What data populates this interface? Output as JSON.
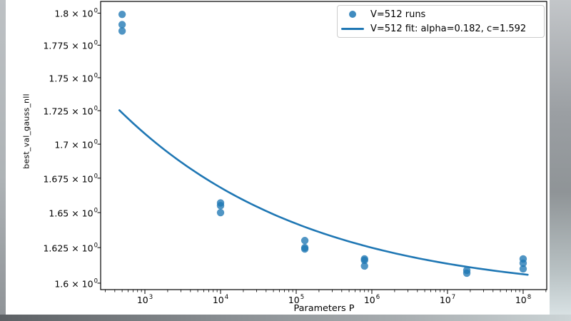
{
  "frame": {
    "edge_color_left": "#b0b4b8",
    "edge_color_right_mid": "#8f9497",
    "edge_color_bottom_left": "#5d6165",
    "figure_bg": "#ffffff"
  },
  "chart_data": {
    "type": "scatter",
    "title": "",
    "xlabel": "Parameters P",
    "ylabel": "best_val_gauss_nll",
    "xscale": "log",
    "yscale": "log",
    "xlim": [
      260,
      205000000
    ],
    "ylim": [
      1.5955,
      1.8092
    ],
    "grid": false,
    "times_symbol": "×",
    "tick_base": "10",
    "x_ticks": [
      {
        "exponent": "3",
        "value": 1000
      },
      {
        "exponent": "4",
        "value": 10000
      },
      {
        "exponent": "5",
        "value": 100000
      },
      {
        "exponent": "6",
        "value": 1000000
      },
      {
        "exponent": "7",
        "value": 10000000
      },
      {
        "exponent": "8",
        "value": 100000000
      }
    ],
    "y_tick_exponent": "0",
    "y_ticks": [
      {
        "mantissa": "1.8",
        "value": 1.8
      },
      {
        "mantissa": "1.775",
        "value": 1.775
      },
      {
        "mantissa": "1.75",
        "value": 1.75
      },
      {
        "mantissa": "1.725",
        "value": 1.725
      },
      {
        "mantissa": "1.7",
        "value": 1.7
      },
      {
        "mantissa": "1.675",
        "value": 1.675
      },
      {
        "mantissa": "1.65",
        "value": 1.65
      },
      {
        "mantissa": "1.625",
        "value": 1.625
      },
      {
        "mantissa": "1.6",
        "value": 1.6
      }
    ],
    "legend": {
      "position": "upper right",
      "entries": [
        {
          "label": "V=512 runs",
          "marker": "dot"
        },
        {
          "label": "V=512 fit: alpha=0.182, c=1.592",
          "marker": "line"
        }
      ]
    },
    "series": [
      {
        "name": "V=512 runs",
        "type": "scatter",
        "color": "#1f77b4",
        "alpha": 0.78,
        "marker_radius": 5.2,
        "points": [
          [
            500,
            1.799
          ],
          [
            500,
            1.791
          ],
          [
            500,
            1.786
          ],
          [
            10000,
            1.657
          ],
          [
            10000,
            1.655
          ],
          [
            10000,
            1.65
          ],
          [
            130000,
            1.63
          ],
          [
            130000,
            1.625
          ],
          [
            130000,
            1.624
          ],
          [
            800000,
            1.617
          ],
          [
            800000,
            1.616
          ],
          [
            800000,
            1.612
          ],
          [
            18000000,
            1.609
          ],
          [
            18000000,
            1.607
          ],
          [
            100000000,
            1.617
          ],
          [
            100000000,
            1.614
          ],
          [
            100000000,
            1.61
          ]
        ]
      },
      {
        "name": "V=512 fit: alpha=0.182, c=1.592",
        "type": "fit_line",
        "color": "#1f77b4",
        "line_width": 2.6,
        "fit_alpha": 0.182,
        "fit_c": 1.592,
        "fit_amplitude": 0.407,
        "x_range": [
          460,
          115000000
        ]
      }
    ]
  }
}
